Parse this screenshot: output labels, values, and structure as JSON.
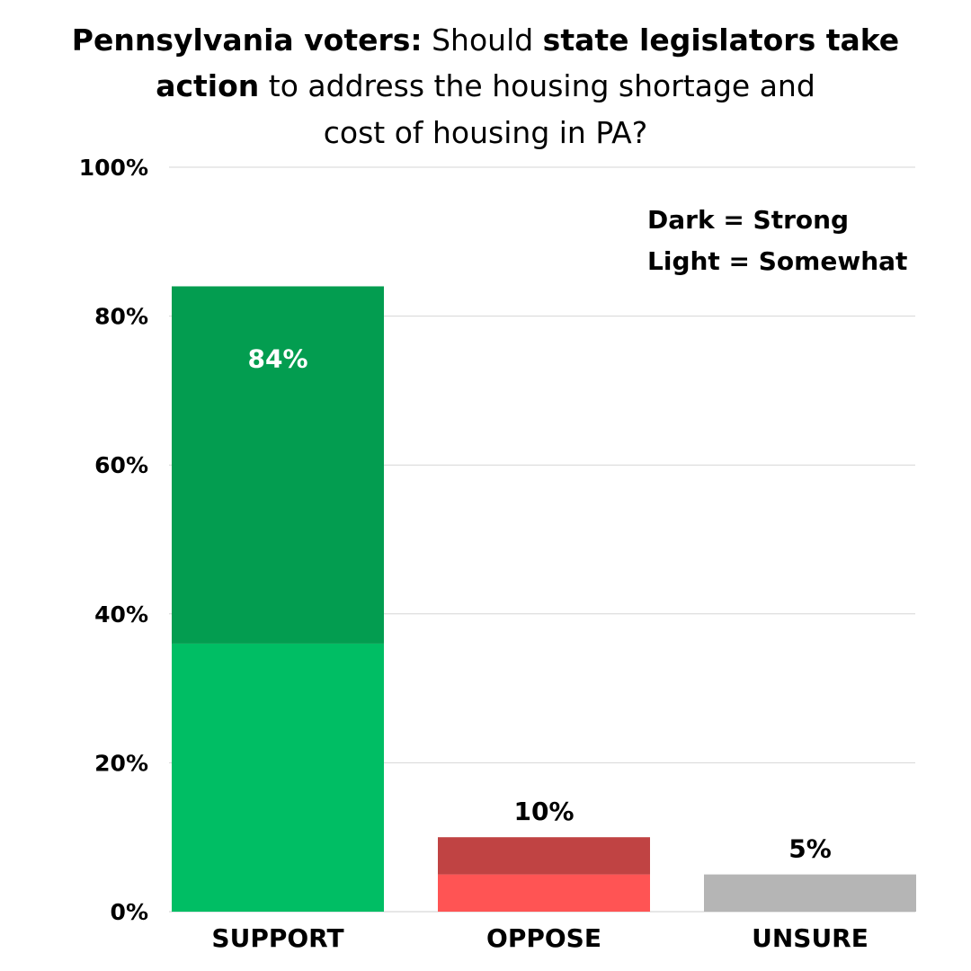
{
  "chart_data": {
    "type": "bar",
    "stacked": true,
    "title": {
      "line1_bold": "Pennsylvania voters:",
      "line1_regular": " Should ",
      "line1_bold2": "state legislators take",
      "line2_bold": "action",
      "line2_regular": " to address the housing shortage and",
      "line3": "cost of housing in PA?"
    },
    "categories": [
      "SUPPORT",
      "OPPOSE",
      "UNSURE"
    ],
    "series": [
      {
        "name": "Somewhat",
        "values": [
          36,
          5,
          5
        ]
      },
      {
        "name": "Strong",
        "values": [
          48,
          5,
          0
        ]
      }
    ],
    "totals": [
      84,
      10,
      5
    ],
    "data_labels": [
      "84%",
      "10%",
      "5%"
    ],
    "colors": {
      "SUPPORT": {
        "Somewhat": "#00be64",
        "Strong": "#039d50"
      },
      "OPPOSE": {
        "Somewhat": "#ff5454",
        "Strong": "#c04343"
      },
      "UNSURE": {
        "Somewhat": "#b5b5b5",
        "Strong": "#b5b5b5"
      }
    },
    "y_ticks": [
      "0%",
      "20%",
      "40%",
      "60%",
      "80%",
      "100%"
    ],
    "ylim": [
      0,
      100
    ],
    "grid": true,
    "legend": {
      "line1": "Dark = Strong",
      "line2": "Light = Somewhat",
      "placement": "top-right"
    }
  }
}
